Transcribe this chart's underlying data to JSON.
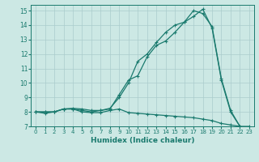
{
  "xlabel": "Humidex (Indice chaleur)",
  "background_color": "#cce8e4",
  "grid_color": "#aacccc",
  "line_color": "#1a7a6e",
  "xlim": [
    -0.5,
    23.5
  ],
  "ylim": [
    7,
    15.4
  ],
  "xticks": [
    0,
    1,
    2,
    3,
    4,
    5,
    6,
    7,
    8,
    9,
    10,
    11,
    12,
    13,
    14,
    15,
    16,
    17,
    18,
    19,
    20,
    21,
    22,
    23
  ],
  "yticks": [
    7,
    8,
    9,
    10,
    11,
    12,
    13,
    14,
    15
  ],
  "series1_x": [
    0,
    1,
    2,
    3,
    4,
    5,
    6,
    7,
    8,
    9,
    10,
    11,
    12,
    13,
    14,
    15,
    16,
    17,
    18,
    19,
    20,
    21,
    22,
    23
  ],
  "series1_y": [
    8.0,
    7.9,
    8.0,
    8.2,
    8.2,
    8.0,
    7.95,
    7.95,
    8.1,
    8.2,
    7.95,
    7.9,
    7.85,
    7.8,
    7.75,
    7.7,
    7.65,
    7.6,
    7.5,
    7.4,
    7.2,
    7.1,
    7.0,
    7.0
  ],
  "series2_x": [
    0,
    1,
    2,
    3,
    4,
    5,
    6,
    7,
    8,
    9,
    10,
    11,
    12,
    13,
    14,
    15,
    16,
    17,
    18,
    19,
    20,
    21,
    22
  ],
  "series2_y": [
    8.0,
    8.0,
    8.0,
    8.2,
    8.2,
    8.1,
    8.0,
    8.1,
    8.2,
    9.2,
    10.2,
    10.5,
    11.8,
    12.6,
    12.9,
    13.5,
    14.2,
    14.6,
    15.1,
    13.8,
    10.2,
    8.0,
    7.0
  ],
  "series3_x": [
    0,
    1,
    2,
    3,
    4,
    5,
    6,
    7,
    8,
    9,
    10,
    11,
    12,
    13,
    14,
    15,
    16,
    17,
    18,
    19,
    20,
    21,
    22
  ],
  "series3_y": [
    8.0,
    8.0,
    8.0,
    8.2,
    8.25,
    8.2,
    8.1,
    8.1,
    8.25,
    9.0,
    10.0,
    11.5,
    12.0,
    12.8,
    13.5,
    14.0,
    14.2,
    15.0,
    14.8,
    13.9,
    10.3,
    8.1,
    7.0
  ],
  "markersize": 3.5,
  "linewidth": 0.9
}
